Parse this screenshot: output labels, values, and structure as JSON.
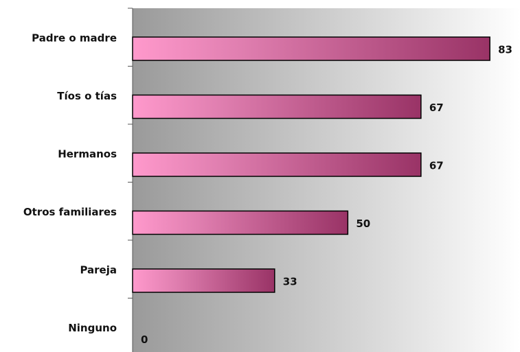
{
  "chart_data": {
    "type": "bar",
    "orientation": "horizontal",
    "categories": [
      "Padre o madre",
      "Tíos o tías",
      "Hermanos",
      "Otros familiares",
      "Pareja",
      "Ninguno"
    ],
    "values": [
      83,
      67,
      67,
      50,
      33,
      0
    ],
    "color": "#993366",
    "xlim": [
      0,
      90
    ]
  }
}
